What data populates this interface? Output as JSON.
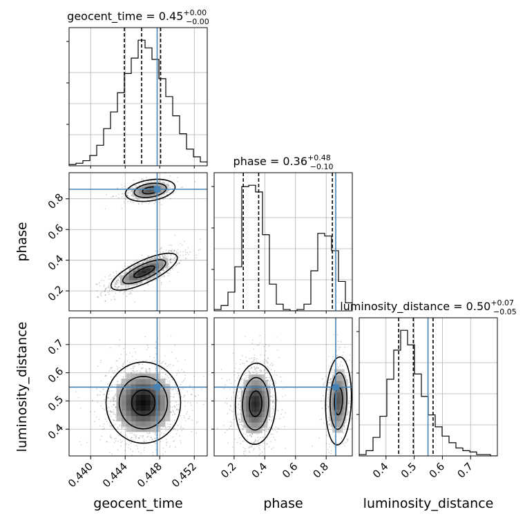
{
  "chart_data": {
    "type": "corner",
    "parameters": [
      "geocent_time",
      "phase",
      "luminosity_distance"
    ],
    "ranges": {
      "geocent_time": [
        0.4375,
        0.4535
      ],
      "phase": [
        0.07,
        0.97
      ],
      "luminosity_distance": [
        0.305,
        0.795
      ]
    },
    "truths": {
      "geocent_time": 0.4477,
      "phase": 0.862,
      "luminosity_distance": 0.549
    },
    "titles": [
      {
        "param": "geocent_time",
        "text": "geocent_time = 0.45",
        "plus": "+0.00",
        "minus": "−0.00"
      },
      {
        "param": "phase",
        "text": "phase = 0.36",
        "plus": "+0.48",
        "minus": "−0.10"
      },
      {
        "param": "luminosity_distance",
        "text": "luminosity_distance = 0.50",
        "plus": "+0.07",
        "minus": "−0.05"
      }
    ],
    "quantiles": {
      "geocent_time": [
        0.4439,
        0.4459,
        0.4481
      ],
      "phase": [
        0.26,
        0.36,
        0.84
      ],
      "luminosity_distance": [
        0.445,
        0.497,
        0.567
      ]
    },
    "ticks": {
      "geocent_time": {
        "values": [
          0.44,
          0.444,
          0.448,
          0.452
        ],
        "labels": [
          "0.440",
          "0.444",
          "0.448",
          "0.452"
        ]
      },
      "phase": {
        "values": [
          0.2,
          0.4,
          0.6,
          0.8
        ],
        "labels": [
          "0.2",
          "0.4",
          "0.6",
          "0.8"
        ]
      },
      "luminosity_distance": {
        "values": [
          0.4,
          0.5,
          0.6,
          0.7
        ],
        "labels": [
          "0.4",
          "0.5",
          "0.6",
          "0.7"
        ]
      }
    },
    "histograms": {
      "geocent_time": {
        "bin_start": 0.4375,
        "bin_width": 0.0008,
        "counts": [
          1,
          2,
          4,
          8,
          16,
          29,
          42,
          57,
          72,
          84,
          98,
          92,
          83,
          68,
          54,
          39,
          25,
          13,
          7,
          3
        ]
      },
      "phase": {
        "bin_start": 0.07,
        "bin_width": 0.045,
        "counts": [
          1,
          4,
          14,
          33,
          93,
          94,
          89,
          57,
          20,
          5,
          1,
          0,
          1,
          5,
          30,
          58,
          56,
          45,
          22,
          6
        ]
      },
      "luminosity_distance": {
        "bin_start": 0.305,
        "bin_width": 0.0245,
        "counts": [
          1,
          4,
          14,
          30,
          58,
          80,
          95,
          84,
          62,
          45,
          31,
          22,
          15,
          10,
          6,
          4,
          3,
          1,
          1,
          0
        ]
      }
    },
    "modes_2d": [
      {
        "pair": [
          "geocent_time",
          "phase"
        ],
        "center": [
          0.4462,
          0.325
        ],
        "sigma": [
          0.0016,
          0.05
        ],
        "rho": 0.75,
        "weight": 0.72
      },
      {
        "pair": [
          "geocent_time",
          "phase"
        ],
        "center": [
          0.4469,
          0.855
        ],
        "sigma": [
          0.0012,
          0.03
        ],
        "rho": 0.3,
        "weight": 0.28
      },
      {
        "pair": [
          "geocent_time",
          "luminosity_distance"
        ],
        "center": [
          0.4461,
          0.494
        ],
        "sigma": [
          0.0018,
          0.06
        ],
        "rho": 0.0,
        "weight": 1.0
      },
      {
        "pair": [
          "phase",
          "luminosity_distance"
        ],
        "center": [
          0.34,
          0.49
        ],
        "sigma": [
          0.055,
          0.06
        ],
        "rho": 0.05,
        "weight": 0.72
      },
      {
        "pair": [
          "phase",
          "luminosity_distance"
        ],
        "center": [
          0.88,
          0.5
        ],
        "sigma": [
          0.035,
          0.065
        ],
        "rho": 0.1,
        "weight": 0.28
      }
    ],
    "truth_color": "#4682b4",
    "line_color": "#000000",
    "grid": true
  }
}
